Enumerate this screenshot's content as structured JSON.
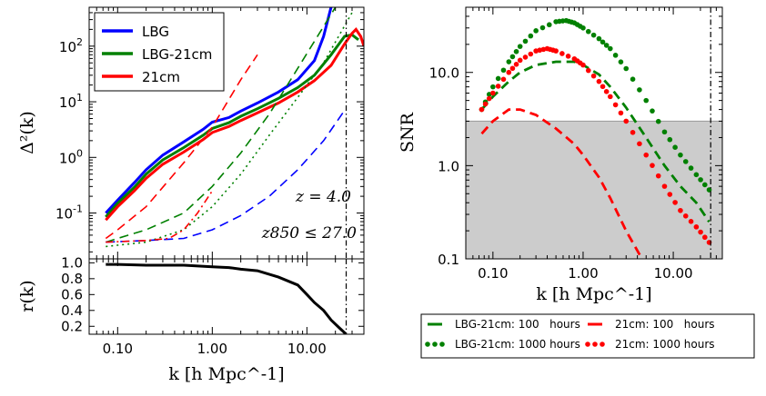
{
  "chart_data": [
    {
      "type": "line",
      "title": "",
      "xlabel": "k [h Mpc^-1]",
      "ylabel": "Δ²(k)",
      "xscale": "log",
      "yscale": "log",
      "xlim": [
        0.05,
        40
      ],
      "ylim": [
        0.015,
        500
      ],
      "xticks": [
        "0.10",
        "1.00",
        "10.00"
      ],
      "yticks": [
        "10^-1",
        "10^0",
        "10^1",
        "10^2"
      ],
      "legend": {
        "position": "top-left",
        "entries": [
          "LBG",
          "LBG-21cm",
          "21cm"
        ]
      },
      "annotations": [
        "z = 4.0",
        "z850 ≤ 27.0"
      ],
      "vline_k": 26,
      "series": [
        {
          "name": "LBG",
          "style": "solid",
          "color": "#0000ff",
          "x": [
            0.075,
            0.1,
            0.15,
            0.2,
            0.3,
            0.5,
            0.8,
            1.0,
            1.5,
            2,
            3,
            5,
            8,
            12,
            15,
            18
          ],
          "y": [
            0.1,
            0.17,
            0.35,
            0.6,
            1.1,
            1.9,
            3.2,
            4.3,
            5.2,
            6.8,
            9.5,
            15,
            25,
            55,
            150,
            500
          ]
        },
        {
          "name": "LBG-21cm",
          "style": "solid",
          "color": "#008000",
          "x": [
            0.075,
            0.1,
            0.15,
            0.2,
            0.3,
            0.5,
            0.8,
            1.0,
            1.5,
            2,
            3,
            5,
            8,
            12,
            18,
            25,
            30,
            35
          ],
          "y": [
            0.085,
            0.15,
            0.29,
            0.5,
            0.9,
            1.5,
            2.5,
            3.3,
            4.2,
            5.5,
            7.5,
            11.5,
            18,
            30,
            70,
            150,
            160,
            130
          ]
        },
        {
          "name": "21cm",
          "style": "solid",
          "color": "#ff0000",
          "x": [
            0.075,
            0.1,
            0.15,
            0.2,
            0.3,
            0.5,
            0.8,
            1.0,
            1.5,
            2,
            3,
            5,
            8,
            12,
            18,
            25,
            30,
            33,
            37,
            40
          ],
          "y": [
            0.075,
            0.13,
            0.25,
            0.42,
            0.75,
            1.25,
            2.1,
            2.8,
            3.6,
            4.6,
            6.3,
            9.5,
            15,
            24,
            45,
            110,
            170,
            200,
            150,
            100
          ]
        },
        {
          "name": "21cm noise",
          "style": "dashed",
          "color": "#ff0000",
          "x": [
            0.075,
            0.1,
            0.2,
            0.5,
            1,
            2,
            3
          ],
          "y": [
            0.035,
            0.05,
            0.13,
            0.8,
            3.5,
            25,
            70
          ]
        },
        {
          "name": "LBG-21cm noise",
          "style": "dashed",
          "color": "#008000",
          "x": [
            0.075,
            0.1,
            0.2,
            0.5,
            1,
            2,
            4,
            8,
            20
          ],
          "y": [
            0.03,
            0.035,
            0.05,
            0.1,
            0.3,
            1.2,
            6,
            40,
            500
          ]
        },
        {
          "name": "LBG noise",
          "style": "dashed",
          "color": "#0000ff",
          "x": [
            0.075,
            0.2,
            0.5,
            1,
            2,
            4,
            8,
            15,
            25
          ],
          "y": [
            0.03,
            0.032,
            0.035,
            0.05,
            0.09,
            0.2,
            0.6,
            2,
            7
          ]
        },
        {
          "name": "LBG-21cm cross",
          "style": "dotted",
          "color": "#008000",
          "x": [
            0.075,
            0.2,
            0.5,
            1,
            2,
            4,
            8,
            15,
            30
          ],
          "y": [
            0.025,
            0.03,
            0.05,
            0.13,
            0.5,
            2.5,
            12,
            50,
            400
          ]
        },
        {
          "name": "21cm dash-dot",
          "style": "dashdot",
          "color": "#ff0000",
          "x": [
            0.075,
            0.2,
            0.35,
            0.5,
            0.7,
            1
          ],
          "y": [
            0.03,
            0.032,
            0.035,
            0.05,
            0.1,
            0.25
          ]
        }
      ]
    },
    {
      "type": "line",
      "title": "",
      "xlabel": "k [h Mpc^-1]",
      "ylabel": "r(k)",
      "xscale": "log",
      "xlim": [
        0.05,
        40
      ],
      "ylim": [
        0.1,
        1.05
      ],
      "xticks": [
        "0.10",
        "1.00",
        "10.00"
      ],
      "yticks": [
        "0.2",
        "0.4",
        "0.6",
        "0.8",
        "1.0"
      ],
      "vline_k": 26,
      "series": [
        {
          "name": "r(k)",
          "style": "solid",
          "color": "#000000",
          "x": [
            0.075,
            0.1,
            0.2,
            0.5,
            1,
            1.5,
            2,
            3,
            5,
            8,
            10,
            12,
            15,
            18,
            22,
            26
          ],
          "y": [
            0.98,
            0.98,
            0.97,
            0.97,
            0.95,
            0.94,
            0.92,
            0.9,
            0.82,
            0.72,
            0.6,
            0.5,
            0.4,
            0.28,
            0.18,
            0.1
          ]
        }
      ]
    },
    {
      "type": "line",
      "title": "",
      "xlabel": "k [h Mpc^-1]",
      "ylabel": "SNR",
      "xscale": "log",
      "yscale": "log",
      "xlim": [
        0.05,
        35
      ],
      "ylim": [
        0.1,
        50
      ],
      "xticks": [
        "0.10",
        "1.00",
        "10.00"
      ],
      "yticks": [
        "0.1",
        "1.0",
        "10.0"
      ],
      "shaded_below": 3.0,
      "vline_k": 26,
      "legend": {
        "position": "below",
        "entries": [
          "LBG-21cm: 100   hours",
          "21cm: 100   hours",
          "LBG-21cm: 1000 hours",
          "21cm: 1000 hours"
        ]
      },
      "series": [
        {
          "name": "LBG-21cm: 100   hours",
          "style": "dashed",
          "color": "#008000",
          "x": [
            0.075,
            0.1,
            0.15,
            0.2,
            0.3,
            0.5,
            0.8,
            1.0,
            1.5,
            2,
            3,
            5,
            8,
            12,
            18,
            25
          ],
          "y": [
            4.0,
            5.5,
            8.0,
            10.0,
            12.0,
            13.0,
            13.0,
            12.0,
            9.5,
            7.0,
            4.2,
            2.0,
            1.0,
            0.6,
            0.4,
            0.25
          ]
        },
        {
          "name": "21cm: 100   hours",
          "style": "dashed",
          "color": "#ff0000",
          "x": [
            0.075,
            0.1,
            0.15,
            0.2,
            0.3,
            0.5,
            0.8,
            1.0,
            1.5,
            2,
            3,
            4.5
          ],
          "y": [
            2.2,
            3.0,
            4.0,
            4.0,
            3.5,
            2.5,
            1.7,
            1.3,
            0.75,
            0.45,
            0.2,
            0.1
          ]
        },
        {
          "name": "LBG-21cm: 1000 hours",
          "style": "dots",
          "color": "#008000",
          "x": [
            0.075,
            0.1,
            0.15,
            0.2,
            0.3,
            0.5,
            0.65,
            0.8,
            1.0,
            1.5,
            2,
            3,
            5,
            8,
            12,
            18,
            25
          ],
          "y": [
            4.0,
            7.0,
            13.0,
            19.0,
            28.0,
            35.0,
            36.0,
            34.0,
            30.0,
            23.0,
            18.0,
            11.0,
            5.0,
            2.3,
            1.3,
            0.8,
            0.55
          ]
        },
        {
          "name": "21cm: 1000 hours",
          "style": "dots",
          "color": "#ff0000",
          "x": [
            0.075,
            0.1,
            0.15,
            0.2,
            0.3,
            0.4,
            0.5,
            0.8,
            1.0,
            1.5,
            2,
            3,
            5,
            8,
            12,
            18,
            25
          ],
          "y": [
            4.0,
            6.0,
            10.0,
            13.5,
            17.0,
            18.0,
            17.0,
            14.0,
            12.0,
            8.0,
            5.5,
            3.0,
            1.3,
            0.6,
            0.33,
            0.22,
            0.15
          ]
        }
      ]
    }
  ]
}
